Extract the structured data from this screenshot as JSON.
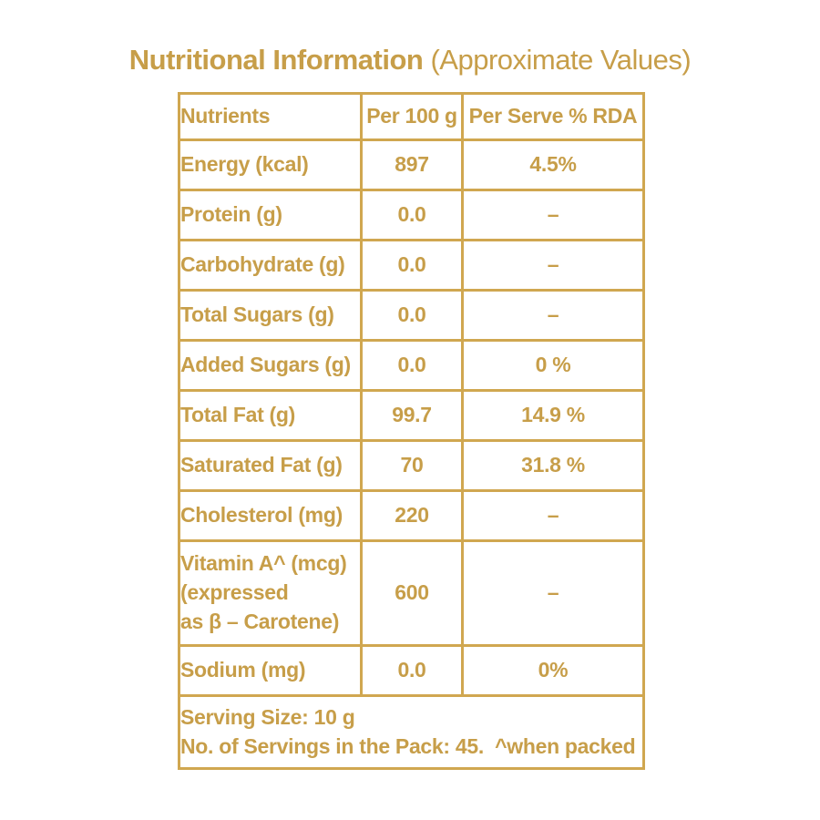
{
  "title": {
    "main": "Nutritional Information",
    "sub": "(Approximate Values)"
  },
  "colors": {
    "gold_text": "#C79E49",
    "gold_border": "#D0A750",
    "background": "#FFFFFF"
  },
  "table": {
    "headers": {
      "nutrients": "Nutrients",
      "per_100g": "Per 100 g",
      "per_serve_rda": "Per Serve % RDA"
    },
    "rows": [
      {
        "nutrient": "Energy (kcal)",
        "per_100g": "897",
        "per_serve_rda": "4.5%"
      },
      {
        "nutrient": "Protein (g)",
        "per_100g": "0.0",
        "per_serve_rda": "–"
      },
      {
        "nutrient": "Carbohydrate (g)",
        "per_100g": "0.0",
        "per_serve_rda": "–"
      },
      {
        "nutrient": "Total Sugars (g)",
        "per_100g": "0.0",
        "per_serve_rda": "–"
      },
      {
        "nutrient": "Added Sugars (g)",
        "per_100g": "0.0",
        "per_serve_rda": "0 %"
      },
      {
        "nutrient": "Total Fat (g)",
        "per_100g": "99.7",
        "per_serve_rda": "14.9 %"
      },
      {
        "nutrient": "Saturated Fat (g)",
        "per_100g": "70",
        "per_serve_rda": "31.8 %"
      },
      {
        "nutrient": "Cholesterol (mg)",
        "per_100g": "220",
        "per_serve_rda": "–"
      },
      {
        "nutrient": "Vitamin A^ (mcg)\n(expressed\nas β – Carotene)",
        "per_100g": "600",
        "per_serve_rda": "–"
      },
      {
        "nutrient": "Sodium (mg)",
        "per_100g": "0.0",
        "per_serve_rda": "0%"
      }
    ],
    "footer_text": "Serving Size: 10 g\nNo. of Servings in the Pack: 45.  ^when packed"
  }
}
